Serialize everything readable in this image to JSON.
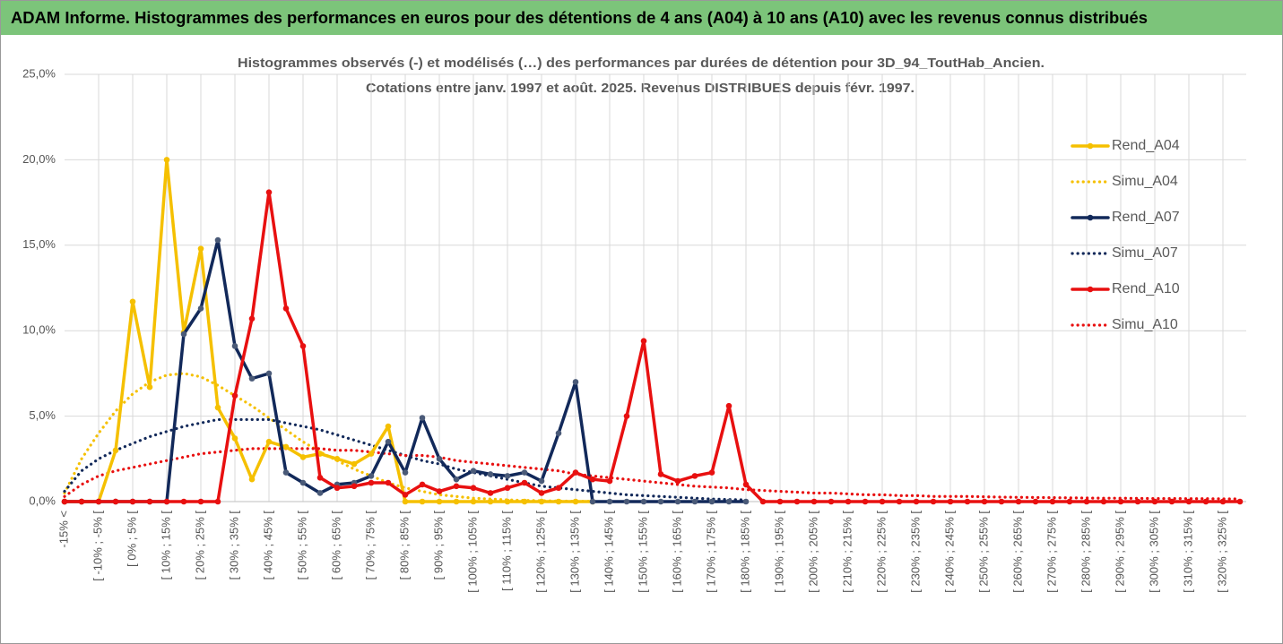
{
  "chart_data": {
    "type": "line",
    "title": "ADAM Informe. Histogrammes des performances en euros pour des détentions de 4 ans (A04) à 10 ans (A10) avec les revenus connus distribués",
    "subtitle": [
      "Histogrammes observés (-) et modélisés (…) des performances par durées de détention pour 3D_94_ToutHab_Ancien.",
      "Cotations entre janv. 1997 et août. 2025. Revenus DISTRIBUES depuis févr. 1997."
    ],
    "categories": [
      "-15% <",
      null,
      "[ -10% ; -5% [",
      null,
      "[ 0% ; 5% [",
      null,
      "[ 10% ; 15% [",
      null,
      "[ 20% ; 25% [",
      null,
      "[ 30% ; 35% [",
      null,
      "[ 40% ; 45% [",
      null,
      "[ 50% ; 55% [",
      null,
      "[ 60% ; 65% [",
      null,
      "[ 70% ; 75% [",
      null,
      "[ 80% ; 85% [",
      null,
      "[ 90% ; 95% [",
      null,
      "[ 100% ; 105% [",
      null,
      "[ 110% ; 115% [",
      null,
      "[ 120% ; 125% [",
      null,
      "[ 130% ; 135% [",
      null,
      "[ 140% ; 145% [",
      null,
      "[ 150% ; 155% [",
      null,
      "[ 160% ; 165% [",
      null,
      "[ 170% ; 175% [",
      null,
      "[ 180% ; 185% [",
      null,
      "[ 190% ; 195% [",
      null,
      "[ 200% ; 205% [",
      null,
      "[ 210% ; 215% [",
      null,
      "[ 220% ; 225% [",
      null,
      "[ 230% ; 235% [",
      null,
      "[ 240% ; 245% [",
      null,
      "[ 250% ; 255% [",
      null,
      "[ 260% ; 265% [",
      null,
      "[ 270% ; 275% [",
      null,
      "[ 280% ; 285% [",
      null,
      "[ 290% ; 295% [",
      null,
      "[ 300% ; 305% [",
      null,
      "[ 310% ; 315% [",
      null,
      "[ 320% ; 325% [",
      null
    ],
    "series": [
      {
        "name": "Rend_A04",
        "color": "#f5c000",
        "style": "solid",
        "values": [
          0,
          0,
          0,
          3.0,
          11.7,
          6.7,
          20.0,
          9.9,
          14.8,
          5.5,
          3.7,
          1.3,
          3.5,
          3.2,
          2.6,
          2.8,
          2.5,
          2.2,
          2.8,
          4.4,
          0,
          0,
          0,
          0,
          0,
          0,
          0,
          0,
          0,
          0,
          0,
          0,
          null,
          null,
          null,
          null,
          null,
          null,
          null,
          null,
          null,
          null,
          null,
          null,
          null,
          null,
          null,
          null,
          null,
          null,
          null,
          null,
          null,
          null,
          null,
          null,
          null,
          null,
          null,
          null,
          null,
          null,
          null,
          null,
          null,
          null,
          null,
          null,
          null,
          null
        ]
      },
      {
        "name": "Simu_A04",
        "color": "#f5c000",
        "style": "dotted",
        "values": [
          0.5,
          2.5,
          4.0,
          5.3,
          6.3,
          7.0,
          7.4,
          7.5,
          7.3,
          6.8,
          6.2,
          5.6,
          4.9,
          4.2,
          3.5,
          2.9,
          2.4,
          1.9,
          1.5,
          1.1,
          0.8,
          0.6,
          0.4,
          0.3,
          0.2,
          0.15,
          0.1,
          0.07,
          0.05,
          0.03,
          0.02,
          0.01,
          null,
          null,
          null,
          null,
          null,
          null,
          null,
          null,
          null,
          null,
          null,
          null,
          null,
          null,
          null,
          null,
          null,
          null,
          null,
          null,
          null,
          null,
          null,
          null,
          null,
          null,
          null,
          null,
          null,
          null,
          null,
          null,
          null,
          null,
          null,
          null,
          null,
          null
        ]
      },
      {
        "name": "Rend_A07",
        "color": "#12295a",
        "style": "solid",
        "values": [
          0,
          0,
          0,
          0,
          0,
          0,
          0,
          9.8,
          11.3,
          15.3,
          9.1,
          7.2,
          7.5,
          1.7,
          1.1,
          0.5,
          1.0,
          1.1,
          1.5,
          3.5,
          1.7,
          4.9,
          2.5,
          1.3,
          1.8,
          1.6,
          1.5,
          1.7,
          1.2,
          4.0,
          7.0,
          0,
          0,
          0,
          0,
          0,
          0,
          0,
          0,
          0,
          0,
          null,
          null,
          null,
          null,
          null,
          null,
          null,
          null,
          null,
          null,
          null,
          null,
          null,
          null,
          null,
          null,
          null,
          null,
          null,
          null,
          null,
          null,
          null,
          null,
          null,
          null,
          null,
          null,
          null
        ]
      },
      {
        "name": "Simu_A07",
        "color": "#12295a",
        "style": "dotted",
        "values": [
          0.6,
          1.8,
          2.5,
          3.0,
          3.4,
          3.8,
          4.1,
          4.4,
          4.6,
          4.8,
          4.8,
          4.8,
          4.8,
          4.6,
          4.4,
          4.2,
          3.9,
          3.6,
          3.3,
          3.0,
          2.7,
          2.4,
          2.2,
          1.9,
          1.7,
          1.5,
          1.3,
          1.1,
          0.9,
          0.8,
          0.7,
          0.6,
          0.5,
          0.4,
          0.35,
          0.3,
          0.25,
          0.2,
          0.15,
          0.12,
          0.1,
          null,
          null,
          null,
          null,
          null,
          null,
          null,
          null,
          null,
          null,
          null,
          null,
          null,
          null,
          null,
          null,
          null,
          null,
          null,
          null,
          null,
          null,
          null,
          null,
          null,
          null,
          null,
          null,
          null
        ]
      },
      {
        "name": "Rend_A10",
        "color": "#e81010",
        "style": "solid",
        "values": [
          0,
          0,
          0,
          0,
          0,
          0,
          0,
          0,
          0,
          0,
          6.2,
          10.7,
          18.1,
          11.3,
          9.1,
          1.4,
          0.8,
          0.9,
          1.1,
          1.1,
          0.4,
          1.0,
          0.6,
          0.9,
          0.8,
          0.5,
          0.8,
          1.1,
          0.5,
          0.8,
          1.7,
          1.3,
          1.2,
          5.0,
          9.4,
          1.6,
          1.2,
          1.5,
          1.7,
          5.6,
          1.0,
          0,
          0,
          0,
          0,
          0,
          0,
          0,
          0,
          0,
          0,
          0,
          0,
          0,
          0,
          0,
          0,
          0,
          0,
          0,
          0,
          0,
          0,
          0,
          0,
          0,
          0,
          0,
          0,
          0
        ]
      },
      {
        "name": "Simu_A10",
        "color": "#e81010",
        "style": "dotted",
        "values": [
          0.3,
          1.0,
          1.5,
          1.8,
          2.0,
          2.2,
          2.4,
          2.6,
          2.8,
          2.9,
          3.0,
          3.1,
          3.1,
          3.1,
          3.1,
          3.1,
          3.0,
          3.0,
          2.9,
          2.8,
          2.7,
          2.7,
          2.6,
          2.4,
          2.3,
          2.2,
          2.1,
          2.0,
          1.9,
          1.8,
          1.6,
          1.5,
          1.4,
          1.3,
          1.2,
          1.1,
          1.0,
          0.9,
          0.85,
          0.8,
          0.7,
          0.65,
          0.6,
          0.55,
          0.5,
          0.5,
          0.45,
          0.4,
          0.4,
          0.35,
          0.35,
          0.3,
          0.3,
          0.3,
          0.28,
          0.26,
          0.25,
          0.24,
          0.23,
          0.22,
          0.21,
          0.2,
          0.2,
          0.19,
          0.18,
          0.18,
          0.17,
          0.17,
          0.16,
          0.16
        ]
      }
    ],
    "ylim": [
      0,
      25
    ],
    "yticks": [
      {
        "value": 0,
        "label": "0,0%"
      },
      {
        "value": 5,
        "label": "5,0%"
      },
      {
        "value": 10,
        "label": "10,0%"
      },
      {
        "value": 15,
        "label": "15,0%"
      },
      {
        "value": 20,
        "label": "20,0%"
      },
      {
        "value": 25,
        "label": "25,0%"
      }
    ],
    "grid": true,
    "legend_position": "right"
  }
}
